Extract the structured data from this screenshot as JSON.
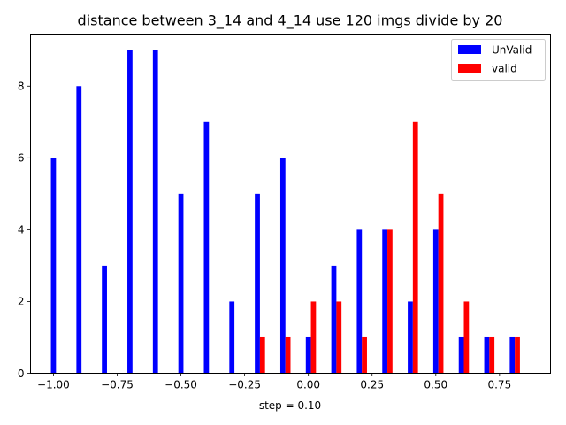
{
  "chart_data": {
    "type": "bar",
    "title": "distance between 3_14 and 4_14 use 120 imgs divide by 20",
    "xlabel": "step = 0.10",
    "ylabel": "",
    "xlim": [
      -1.09,
      0.95
    ],
    "ylim": [
      0,
      9.45
    ],
    "x_ticks": [
      -1.0,
      -0.75,
      -0.5,
      -0.25,
      0.0,
      0.25,
      0.5,
      0.75
    ],
    "x_tick_labels": [
      "−1.00",
      "−0.75",
      "−0.50",
      "−0.25",
      "0.00",
      "0.25",
      "0.50",
      "0.75"
    ],
    "y_ticks": [
      0,
      2,
      4,
      6,
      8
    ],
    "y_tick_labels": [
      "0",
      "2",
      "4",
      "6",
      "8"
    ],
    "grid": false,
    "legend_position": "top-right",
    "bar_width": 0.02,
    "series": [
      {
        "name": "UnValid",
        "color": "#0000ff",
        "x": [
          -0.99,
          -0.89,
          -0.79,
          -0.69,
          -0.59,
          -0.49,
          -0.39,
          -0.29,
          -0.19,
          -0.09,
          0.01,
          0.11,
          0.21,
          0.31,
          0.41,
          0.51,
          0.61,
          0.71,
          0.81
        ],
        "values": [
          6,
          8,
          3,
          9,
          9,
          5,
          7,
          2,
          5,
          6,
          1,
          3,
          4,
          4,
          2,
          4,
          1,
          1,
          1
        ]
      },
      {
        "name": "valid",
        "color": "#ff0000",
        "x": [
          -0.99,
          -0.89,
          -0.79,
          -0.69,
          -0.59,
          -0.49,
          -0.39,
          -0.29,
          -0.19,
          -0.09,
          0.01,
          0.11,
          0.21,
          0.31,
          0.41,
          0.51,
          0.61,
          0.71,
          0.81
        ],
        "values": [
          0,
          0,
          0,
          0,
          0,
          0,
          0,
          0,
          1,
          1,
          2,
          2,
          1,
          4,
          7,
          5,
          2,
          1,
          1
        ]
      }
    ]
  }
}
